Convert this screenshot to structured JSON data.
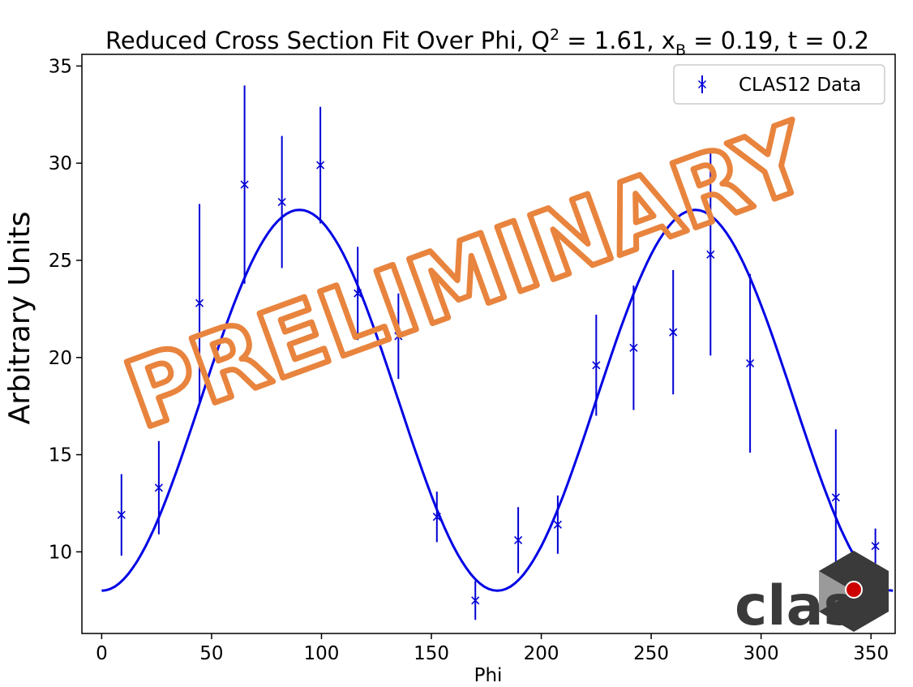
{
  "chart_data": {
    "type": "scatter",
    "title": "Reduced Cross Section Fit Over Phi, Q",
    "title_sup": "2",
    "title_mid": " = 1.61, x",
    "title_sub": "B",
    "title_end": " = 0.19, t = 0.2",
    "xlabel": "Phi",
    "ylabel": "Arbitrary Units",
    "xlim": [
      -9,
      361
    ],
    "ylim": [
      5.8,
      35.6
    ],
    "xticks": [
      0,
      50,
      100,
      150,
      200,
      250,
      300,
      350
    ],
    "yticks": [
      10,
      15,
      20,
      25,
      30,
      35
    ],
    "grid": false,
    "legend_position": "top-right",
    "series": [
      {
        "name": "CLAS12 Data",
        "kind": "errorbar",
        "color": "#0000d6",
        "marker": "x",
        "x": [
          9,
          26,
          44.5,
          65,
          82,
          99.5,
          116.5,
          135,
          152.5,
          170,
          189.5,
          207.5,
          225,
          242,
          260,
          277,
          295,
          334,
          352
        ],
        "y": [
          11.9,
          13.3,
          22.8,
          28.9,
          28.0,
          29.9,
          23.3,
          21.1,
          11.8,
          7.5,
          10.6,
          11.4,
          19.6,
          20.5,
          21.3,
          25.3,
          19.7,
          12.8,
          10.3
        ],
        "yerr": [
          2.1,
          2.4,
          5.1,
          5.1,
          3.4,
          3.0,
          2.4,
          2.2,
          1.3,
          1.0,
          1.7,
          1.5,
          2.6,
          3.2,
          3.2,
          5.2,
          4.6,
          3.5,
          0.9
        ]
      },
      {
        "kind": "fit",
        "color": "#0000e6",
        "x_range": [
          0,
          360
        ],
        "y_min": 8.0,
        "y_max": 27.6
      }
    ]
  },
  "watermark": {
    "text": "PRELIMINARY",
    "color": "#e8843e"
  },
  "logo": {
    "text": "clas",
    "accent_color": "#cc0000"
  }
}
